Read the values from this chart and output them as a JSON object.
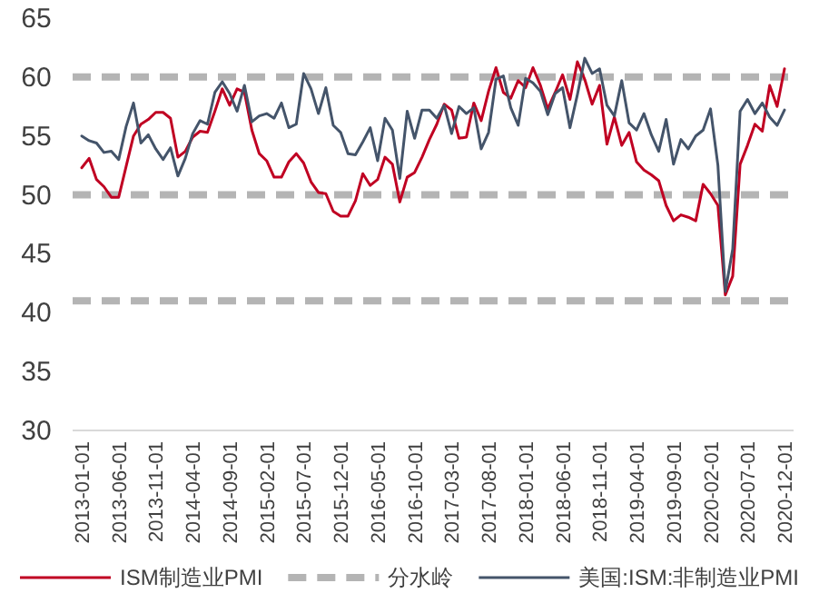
{
  "chart_data": {
    "type": "line",
    "categories": [
      "2013-01-01",
      null,
      null,
      null,
      null,
      "2013-06-01",
      null,
      null,
      null,
      null,
      "2013-11-01",
      null,
      null,
      null,
      null,
      "2014-04-01",
      null,
      null,
      null,
      null,
      "2014-09-01",
      null,
      null,
      null,
      null,
      "2015-02-01",
      null,
      null,
      null,
      null,
      "2015-07-01",
      null,
      null,
      null,
      null,
      "2015-12-01",
      null,
      null,
      null,
      null,
      "2016-05-01",
      null,
      null,
      null,
      null,
      "2016-10-01",
      null,
      null,
      null,
      null,
      "2017-03-01",
      null,
      null,
      null,
      null,
      "2017-08-01",
      null,
      null,
      null,
      null,
      "2018-01-01",
      null,
      null,
      null,
      null,
      "2018-06-01",
      null,
      null,
      null,
      null,
      "2018-11-01",
      null,
      null,
      null,
      null,
      "2019-04-01",
      null,
      null,
      null,
      null,
      "2019-09-01",
      null,
      null,
      null,
      null,
      "2020-02-01",
      null,
      null,
      null,
      null,
      "2020-07-01",
      null,
      null,
      null,
      null,
      "2020-12-01"
    ],
    "series": [
      {
        "name": "ISM制造业PMI",
        "color": "#c00022",
        "values": [
          52.3,
          53.1,
          51.3,
          50.7,
          49.8,
          49.8,
          52.4,
          55.0,
          56.0,
          56.4,
          57.0,
          57.0,
          56.5,
          53.2,
          53.7,
          54.9,
          55.4,
          55.3,
          57.1,
          59.0,
          57.6,
          59.0,
          58.7,
          55.5,
          53.5,
          52.9,
          51.5,
          51.5,
          52.8,
          53.5,
          52.7,
          51.1,
          50.2,
          50.1,
          48.6,
          48.2,
          48.2,
          49.5,
          51.8,
          50.8,
          51.3,
          53.2,
          52.6,
          49.4,
          51.5,
          51.9,
          53.2,
          54.7,
          56.0,
          57.7,
          57.2,
          54.8,
          54.9,
          57.8,
          56.3,
          58.8,
          60.8,
          58.7,
          58.2,
          59.7,
          59.1,
          60.8,
          59.3,
          57.3,
          58.7,
          60.2,
          58.1,
          61.3,
          59.8,
          57.7,
          59.3,
          54.3,
          56.6,
          54.2,
          55.3,
          52.8,
          52.1,
          51.7,
          51.2,
          49.1,
          47.8,
          48.3,
          48.1,
          47.8,
          50.9,
          50.1,
          49.1,
          41.5,
          43.1,
          52.6,
          54.2,
          56.0,
          55.4,
          59.3,
          57.5,
          60.7
        ]
      },
      {
        "name": "美国:ISM:非制造业PMI",
        "color": "#44546a",
        "values": [
          55.0,
          54.6,
          54.4,
          53.6,
          53.7,
          53.0,
          55.8,
          57.8,
          54.4,
          55.1,
          53.9,
          53.0,
          54.0,
          51.6,
          53.1,
          55.2,
          56.3,
          56.0,
          58.7,
          59.6,
          58.6,
          57.1,
          59.3,
          56.2,
          56.7,
          56.9,
          56.5,
          57.8,
          55.7,
          56.0,
          60.3,
          59.0,
          56.9,
          59.1,
          55.9,
          55.3,
          53.5,
          53.4,
          54.5,
          55.7,
          52.9,
          56.5,
          55.5,
          51.4,
          57.1,
          54.8,
          57.2,
          57.2,
          56.5,
          57.6,
          55.2,
          57.5,
          56.9,
          57.4,
          53.9,
          55.3,
          59.8,
          60.1,
          57.4,
          55.9,
          59.9,
          59.5,
          58.8,
          56.8,
          58.6,
          59.1,
          55.7,
          58.5,
          61.6,
          60.3,
          60.7,
          57.6,
          56.7,
          59.7,
          56.1,
          55.5,
          56.9,
          55.1,
          53.7,
          56.4,
          52.6,
          54.7,
          53.9,
          55.0,
          55.5,
          57.3,
          52.5,
          41.8,
          45.4,
          57.1,
          58.1,
          56.9,
          57.8,
          56.6,
          55.9,
          57.2
        ]
      }
    ],
    "ylim": [
      30,
      65
    ],
    "yticks": [
      30,
      35,
      40,
      45,
      50,
      55,
      60,
      65
    ],
    "ref_lines": [
      {
        "axis": "y",
        "value": 60,
        "label": "分水岭",
        "color": "#b4b4b4",
        "line_style": "dashed"
      },
      {
        "axis": "y",
        "value": 50,
        "color": "#b4b4b4",
        "line_style": "dashed"
      },
      {
        "axis": "y",
        "value": 41,
        "color": "#b4b4b4",
        "line_style": "dashed"
      }
    ],
    "legend": "bottom",
    "grid": false,
    "marker": "none"
  }
}
